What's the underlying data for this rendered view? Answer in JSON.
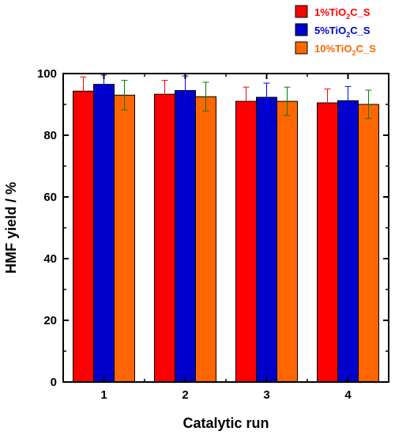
{
  "chart_data": {
    "type": "bar",
    "xlabel": "Catalytic run",
    "ylabel": "HMF yield / %",
    "ylim": [
      0,
      100
    ],
    "yticks": [
      0,
      20,
      40,
      60,
      80,
      100
    ],
    "categories": [
      "1",
      "2",
      "3",
      "4"
    ],
    "grid": false,
    "legend_position": "top-right",
    "series": [
      {
        "name": "1%TiO2C_S",
        "label_parts": {
          "pre": "1%TiO",
          "sub": "2",
          "post": "C_S"
        },
        "color": "#ff0000",
        "error_color": "#ff0000",
        "values": [
          94.3,
          93.3,
          91.0,
          90.5
        ],
        "errors": [
          4.6,
          4.5,
          4.6,
          4.5
        ]
      },
      {
        "name": "5%TiO2C_S",
        "label_parts": {
          "pre": "5%TiO",
          "sub": "2",
          "post": "C_S"
        },
        "color": "#0000cc",
        "error_color": "#0000ff",
        "values": [
          96.5,
          94.5,
          92.3,
          91.2
        ],
        "errors": [
          3.0,
          4.7,
          4.6,
          4.6
        ]
      },
      {
        "name": "10%TiO2C_S",
        "label_parts": {
          "pre": "10%TiO",
          "sub": "2",
          "post": "C_S"
        },
        "color": "#ff6600",
        "error_color": "#008000",
        "values": [
          93.0,
          92.5,
          91.0,
          90.0
        ],
        "errors": [
          4.8,
          4.7,
          4.6,
          4.6
        ]
      }
    ]
  }
}
